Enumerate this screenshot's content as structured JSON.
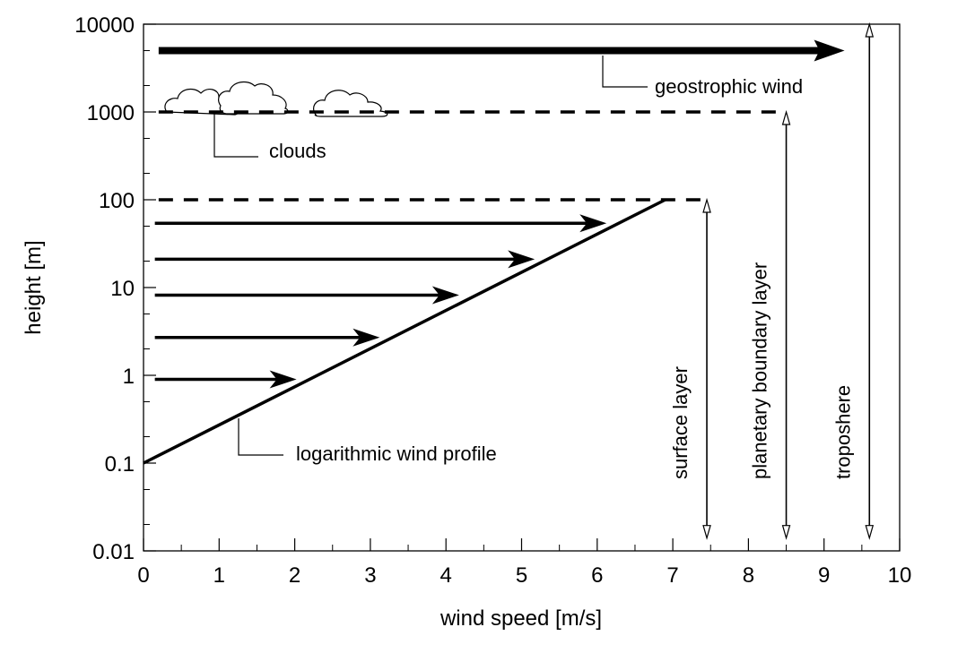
{
  "chart_data": {
    "type": "line",
    "xlabel": "wind speed [m/s]",
    "ylabel": "height [m]",
    "xlim": [
      0,
      10
    ],
    "ylim": [
      0.01,
      10000
    ],
    "yscale": "log",
    "grid": false,
    "x_ticks": [
      "0",
      "1",
      "2",
      "3",
      "4",
      "5",
      "6",
      "7",
      "8",
      "9",
      "10"
    ],
    "y_ticks": [
      {
        "value": 0.01,
        "label": "0.01"
      },
      {
        "value": 0.1,
        "label": "0.1"
      },
      {
        "value": 1,
        "label": "1"
      },
      {
        "value": 10,
        "label": "10"
      },
      {
        "value": 100,
        "label": "100"
      },
      {
        "value": 1000,
        "label": "1000"
      },
      {
        "value": 10000,
        "label": "10000"
      }
    ],
    "series": [
      {
        "name": "logarithmic wind profile",
        "x": [
          0,
          6.9
        ],
        "y": [
          0.1,
          100
        ]
      }
    ],
    "wind_arrows": [
      {
        "height": 0.9,
        "speed": 2.0
      },
      {
        "height": 2.7,
        "speed": 3.1
      },
      {
        "height": 8.2,
        "speed": 4.15
      },
      {
        "height": 21,
        "speed": 5.15
      },
      {
        "height": 54,
        "speed": 6.1
      }
    ],
    "geostrophic_wind": {
      "height": 5000,
      "x_start": 0.2,
      "x_end": 9.2
    },
    "dashed_levels": [
      {
        "height": 100,
        "x_start": 0.2,
        "x_end": 7.5
      },
      {
        "height": 1000,
        "x_start": 0.2,
        "x_end": 8.5
      }
    ],
    "layers": [
      {
        "label": "surface layer",
        "x": 7.45,
        "ymin": 0.014,
        "ymax": 100
      },
      {
        "label": "planetary boundary layer",
        "x": 8.5,
        "ymin": 0.014,
        "ymax": 1000
      },
      {
        "label": "troposhere",
        "x": 9.6,
        "ymin": 0.014,
        "ymax": 10000
      }
    ],
    "annotations": {
      "geostrophic": "geostrophic wind",
      "clouds": "clouds",
      "profile": "logarithmic wind profile"
    }
  }
}
